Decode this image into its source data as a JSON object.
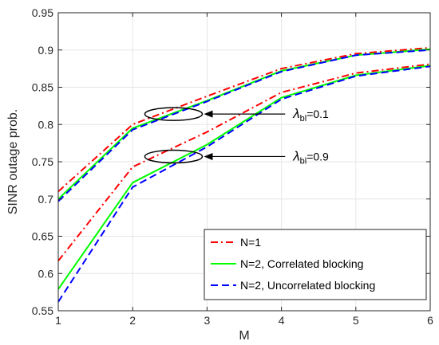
{
  "chart_data": {
    "type": "line",
    "xlabel": "M",
    "ylabel": "SINR outage prob.",
    "xlim": [
      1,
      6
    ],
    "ylim": [
      0.55,
      0.95
    ],
    "x_ticks": [
      "1",
      "2",
      "3",
      "4",
      "5",
      "6"
    ],
    "y_ticks": [
      "0.55",
      "0.6",
      "0.65",
      "0.7",
      "0.75",
      "0.8",
      "0.85",
      "0.9",
      "0.95"
    ],
    "grid": true,
    "legend_position": "bottom-right",
    "x": [
      1,
      2,
      3,
      4,
      5,
      6
    ],
    "series": [
      {
        "name": "N=1",
        "group": "λbl=0.1",
        "color": "#ff0000",
        "dash": "dash-dot",
        "values": [
          0.71,
          0.8,
          0.838,
          0.875,
          0.895,
          0.903
        ]
      },
      {
        "name": "N=2, Correlated blocking",
        "group": "λbl=0.1",
        "color": "#00ff00",
        "dash": "solid",
        "values": [
          0.7,
          0.795,
          0.832,
          0.872,
          0.893,
          0.901
        ]
      },
      {
        "name": "N=2, Uncorrelated blocking",
        "group": "λbl=0.1",
        "color": "#0000ff",
        "dash": "dashed",
        "values": [
          0.697,
          0.793,
          0.831,
          0.871,
          0.893,
          0.9
        ]
      },
      {
        "name": "N=1",
        "group": "λbl=0.9",
        "color": "#ff0000",
        "dash": "dash-dot",
        "values": [
          0.617,
          0.743,
          0.79,
          0.843,
          0.869,
          0.881
        ]
      },
      {
        "name": "N=2, Correlated blocking",
        "group": "λbl=0.9",
        "color": "#00ff00",
        "dash": "solid",
        "values": [
          0.579,
          0.722,
          0.773,
          0.836,
          0.866,
          0.879
        ]
      },
      {
        "name": "N=2, Uncorrelated blocking",
        "group": "λbl=0.9",
        "color": "#0000ff",
        "dash": "dashed",
        "values": [
          0.562,
          0.716,
          0.77,
          0.834,
          0.865,
          0.878
        ]
      }
    ],
    "legend": [
      {
        "label": "N=1",
        "color": "#ff0000",
        "dash": "dash-dot"
      },
      {
        "label": "N=2, Correlated blocking",
        "color": "#00ff00",
        "dash": "solid"
      },
      {
        "label": "N=2, Uncorrelated blocking",
        "color": "#0000ff",
        "dash": "dashed"
      }
    ],
    "annotations": [
      {
        "text_symbol": "λ",
        "text_sub": "bl",
        "text_rest": "=0.1",
        "ellipse_center": [
          2.55,
          0.814
        ],
        "arrow_from_x": 4.05
      },
      {
        "text_symbol": "λ",
        "text_sub": "bl",
        "text_rest": "=0.9",
        "ellipse_center": [
          2.55,
          0.757
        ],
        "arrow_from_x": 4.05
      }
    ]
  }
}
